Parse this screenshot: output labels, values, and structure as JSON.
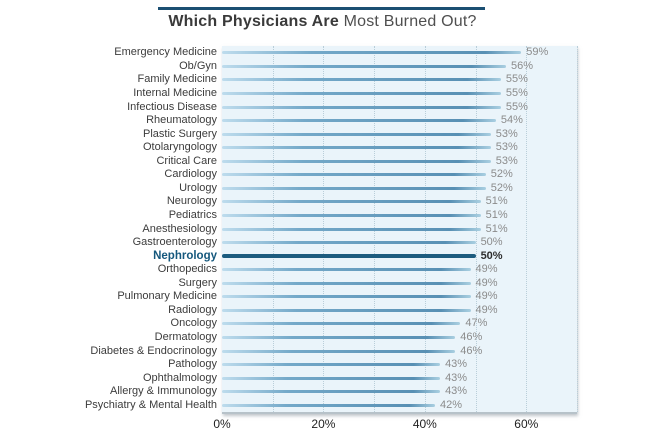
{
  "title": {
    "bold": "Which Physicians Are",
    "regular": "Most Burned Out?"
  },
  "chart_data": {
    "type": "bar",
    "orientation": "horizontal",
    "title": "Which Physicians Are Most Burned Out?",
    "categories": [
      "Emergency Medicine",
      "Ob/Gyn",
      "Family Medicine",
      "Internal Medicine",
      "Infectious Disease",
      "Rheumatology",
      "Plastic Surgery",
      "Otolaryngology",
      "Critical Care",
      "Cardiology",
      "Urology",
      "Neurology",
      "Pediatrics",
      "Anesthesiology",
      "Gastroenterology",
      "Nephrology",
      "Orthopedics",
      "Surgery",
      "Pulmonary Medicine",
      "Radiology",
      "Oncology",
      "Dermatology",
      "Diabetes & Endocrinology",
      "Pathology",
      "Ophthalmology",
      "Allergy & Immunology",
      "Psychiatry & Mental Health"
    ],
    "values": [
      59,
      56,
      55,
      55,
      55,
      54,
      53,
      53,
      53,
      52,
      52,
      51,
      51,
      51,
      50,
      50,
      49,
      49,
      49,
      49,
      47,
      46,
      46,
      43,
      43,
      43,
      42
    ],
    "value_suffix": "%",
    "highlight_category": "Nephrology",
    "xlim": [
      0,
      70
    ],
    "grid_step": 10,
    "x_ticks": [
      0,
      20,
      40,
      60
    ],
    "x_tick_suffix": "%",
    "grid": true,
    "legend": false,
    "colors": {
      "title_rule": "#1b4f72",
      "plot_bg": "#eaf4fa",
      "bar_light": "#bedced",
      "bar_mid": "#74a9c9",
      "bar_dark": "#5890b4",
      "bar_tip": "#a9cfe1",
      "highlight_bar": "#1d5c7f",
      "gridline": "#b9ced9",
      "category_label": "#3c3c3c",
      "highlight_label": "#15587d",
      "value_label": "#8b8b8b"
    }
  }
}
